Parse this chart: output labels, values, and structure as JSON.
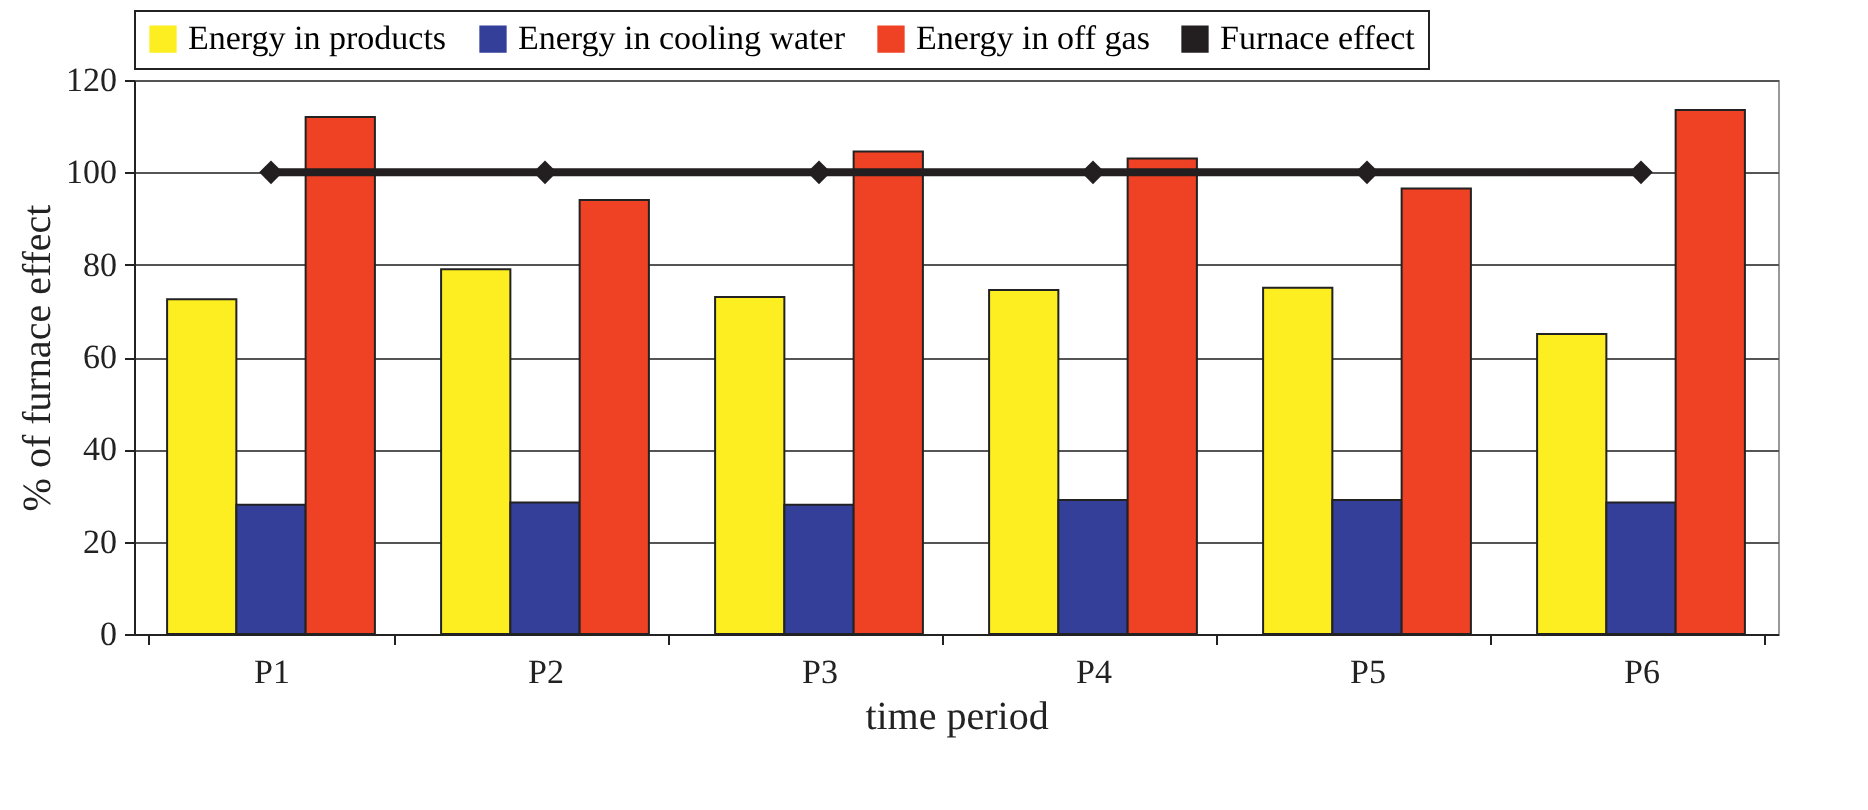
{
  "chart_data": {
    "type": "bar",
    "categories": [
      "P1",
      "P2",
      "P3",
      "P4",
      "P5",
      "P6"
    ],
    "xlabel": "time period",
    "ylabel": "% of furnace effect",
    "ylim": [
      0,
      120
    ],
    "yticks": [
      0,
      20,
      40,
      60,
      80,
      100,
      120
    ],
    "grid": "y",
    "legend": "top",
    "series": [
      {
        "name": "Energy in products",
        "color": "#fcee21",
        "values": [
          72.5,
          79,
          73,
          74.5,
          75,
          65
        ]
      },
      {
        "name": "Energy in cooling water",
        "color": "#333f99",
        "values": [
          28,
          28.5,
          28,
          29,
          29,
          28.5
        ]
      },
      {
        "name": "Energy in off gas",
        "color": "#ef4123",
        "values": [
          112,
          94,
          104.5,
          103,
          96.5,
          113.5
        ]
      },
      {
        "name": "Furnace effect",
        "color": "#231f20",
        "type": "line",
        "marker": "diamond",
        "line_style": "solid",
        "values": [
          100,
          100,
          100,
          100,
          100,
          100
        ]
      }
    ]
  }
}
